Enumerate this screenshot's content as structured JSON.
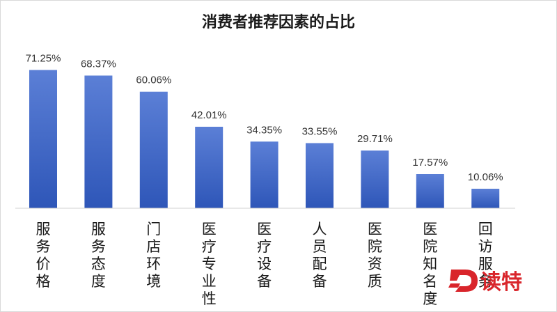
{
  "chart_data": {
    "type": "bar",
    "title": "消费者推荐因素的占比",
    "xlabel": "",
    "ylabel": "",
    "ylim": [
      0,
      80
    ],
    "grid": false,
    "legend": "none",
    "value_suffix": "%",
    "categories": [
      "服务价格",
      "服务态度",
      "门店环境",
      "医疗专业性",
      "医疗设备",
      "人员配备",
      "医院资质",
      "医院知名度",
      "回访服务"
    ],
    "values": [
      71.25,
      68.37,
      60.06,
      42.01,
      34.35,
      33.55,
      29.71,
      17.57,
      10.06
    ],
    "bar_color_top": "#5b7fd6",
    "bar_color_bottom": "#2e56b8"
  },
  "watermark": {
    "text": "读特",
    "color": "#d9252b"
  }
}
